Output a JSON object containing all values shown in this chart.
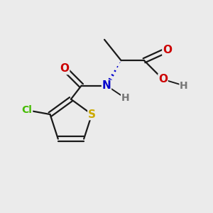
{
  "background_color": "#ebebeb",
  "bond_color": "#1a1a1a",
  "atoms": {
    "S": {
      "color": "#ccaa00",
      "fontsize": 11
    },
    "O": {
      "color": "#cc0000",
      "fontsize": 11
    },
    "N": {
      "color": "#0000cc",
      "fontsize": 11
    },
    "Cl": {
      "color": "#44bb00",
      "fontsize": 10
    },
    "H": {
      "color": "#777777",
      "fontsize": 10
    }
  },
  "figsize": [
    3.0,
    3.0
  ],
  "dpi": 100
}
